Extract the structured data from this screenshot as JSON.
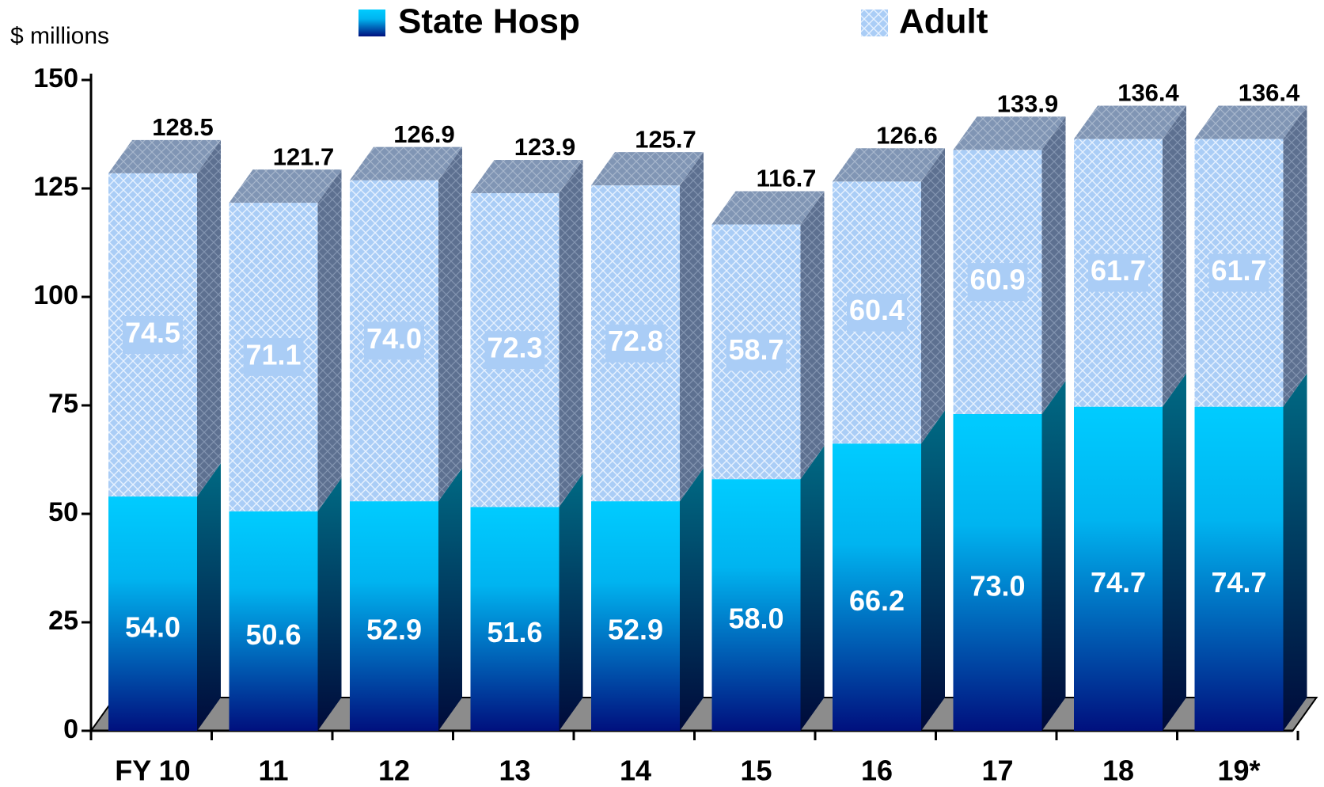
{
  "chart_data": {
    "type": "stacked_bar_3d",
    "y_label": "$ millions",
    "categories": [
      "FY 10",
      "11",
      "12",
      "13",
      "14",
      "15",
      "16",
      "17",
      "18",
      "19*"
    ],
    "series": [
      {
        "name": "State Hosp",
        "color": "#00ccff",
        "values": [
          54.0,
          50.6,
          52.9,
          51.6,
          52.9,
          58.0,
          66.2,
          73.0,
          74.7,
          74.7
        ],
        "value_labels": [
          "54.0",
          "50.6",
          "52.9",
          "51.6",
          "52.9",
          "58.0",
          "66.2",
          "73.0",
          "74.7",
          "74.7"
        ]
      },
      {
        "name": "Adult",
        "color": "#aacdf6",
        "values": [
          74.5,
          71.1,
          74.0,
          72.3,
          72.8,
          58.7,
          60.4,
          60.9,
          61.7,
          61.7
        ],
        "value_labels": [
          "74.5",
          "71.1",
          "74.0",
          "72.3",
          "72.8",
          "58.7",
          "60.4",
          "60.9",
          "61.7",
          "61.7"
        ]
      }
    ],
    "totals": [
      128.5,
      121.7,
      126.9,
      123.9,
      125.7,
      116.7,
      126.6,
      133.9,
      136.4,
      136.4
    ],
    "ylim": [
      0,
      150
    ],
    "yticks": [
      0,
      25,
      50,
      75,
      100,
      125,
      150
    ],
    "grid": false,
    "legend": "top"
  }
}
